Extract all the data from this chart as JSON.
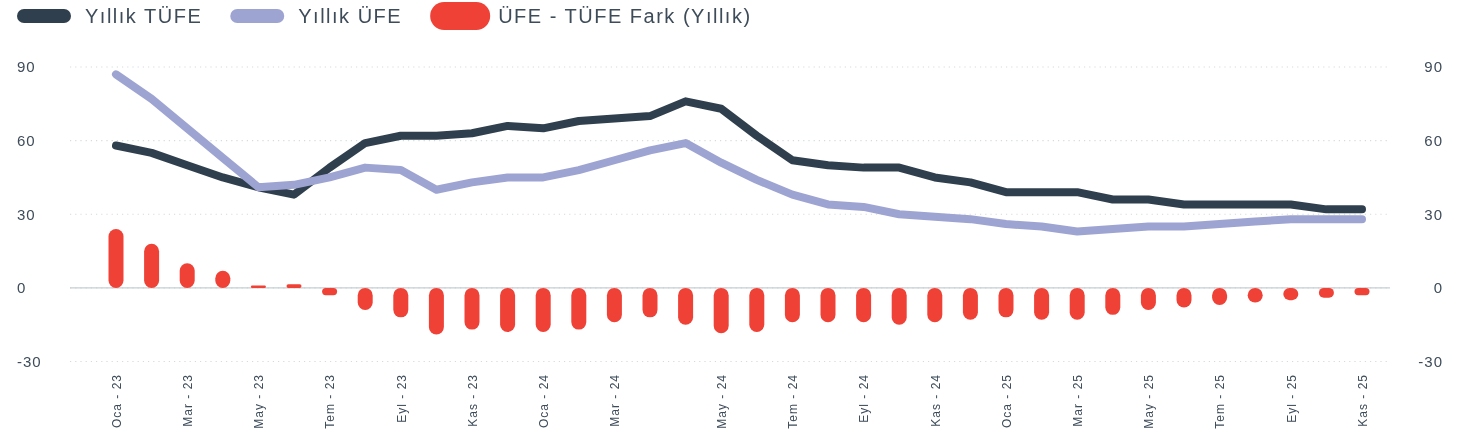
{
  "chart_data": {
    "type": "line",
    "categories": [
      "Oca - 23",
      null,
      "Mar - 23",
      null,
      "May - 23",
      null,
      "Tem - 23",
      null,
      "Eyl - 23",
      null,
      "Kas - 23",
      null,
      "Oca - 24",
      null,
      "Mar - 24",
      null,
      null,
      "May - 24",
      null,
      "Tem - 24",
      null,
      "Eyl - 24",
      null,
      "Kas - 24",
      null,
      "Oca - 25",
      null,
      "Mar - 25",
      null,
      "May - 25",
      null,
      "Tem - 25",
      null,
      "Eyl - 25",
      null,
      "Kas - 25"
    ],
    "series": [
      {
        "name": "Yıllık TÜFE",
        "color": "#2f3f4d",
        "values": [
          58,
          55,
          50,
          45,
          41,
          38,
          49,
          59,
          62,
          62,
          63,
          66,
          65,
          68,
          69,
          70,
          76,
          73,
          62,
          52,
          50,
          49,
          49,
          45,
          43,
          39,
          39,
          39,
          36,
          36,
          34,
          34,
          34,
          34,
          32,
          32
        ]
      },
      {
        "name": "Yıllık ÜFE",
        "color": "#9ea4d2",
        "values": [
          87,
          77,
          65,
          53,
          41,
          42,
          45,
          49,
          48,
          40,
          43,
          45,
          45,
          48,
          52,
          56,
          59,
          51,
          44,
          38,
          34,
          33,
          30,
          29,
          28,
          26,
          25,
          23,
          24,
          25,
          25,
          26,
          27,
          28,
          28,
          28
        ]
      },
      {
        "name": "ÜFE - TÜFE Fark (Yıllık)",
        "type": "bar",
        "color": "#ef4136",
        "values": [
          24,
          18,
          10,
          7,
          1,
          1.5,
          -3,
          -9,
          -12,
          -19,
          -17,
          -18,
          -18,
          -17,
          -14,
          -12,
          -15,
          -18.5,
          -18,
          -14,
          -14,
          -14,
          -15,
          -14,
          -13,
          -12,
          -13,
          -13,
          -11,
          -9,
          -8,
          -7,
          -6,
          -5,
          -4,
          -3
        ]
      }
    ],
    "ylim": [
      -30,
      90
    ],
    "yticks": [
      -30,
      0,
      30,
      60,
      90
    ],
    "y2lim": [
      -30,
      90
    ],
    "y2ticks": [
      -30,
      0,
      30,
      60,
      90
    ],
    "grid": "y",
    "legend": "top left",
    "line_style": "solid"
  }
}
